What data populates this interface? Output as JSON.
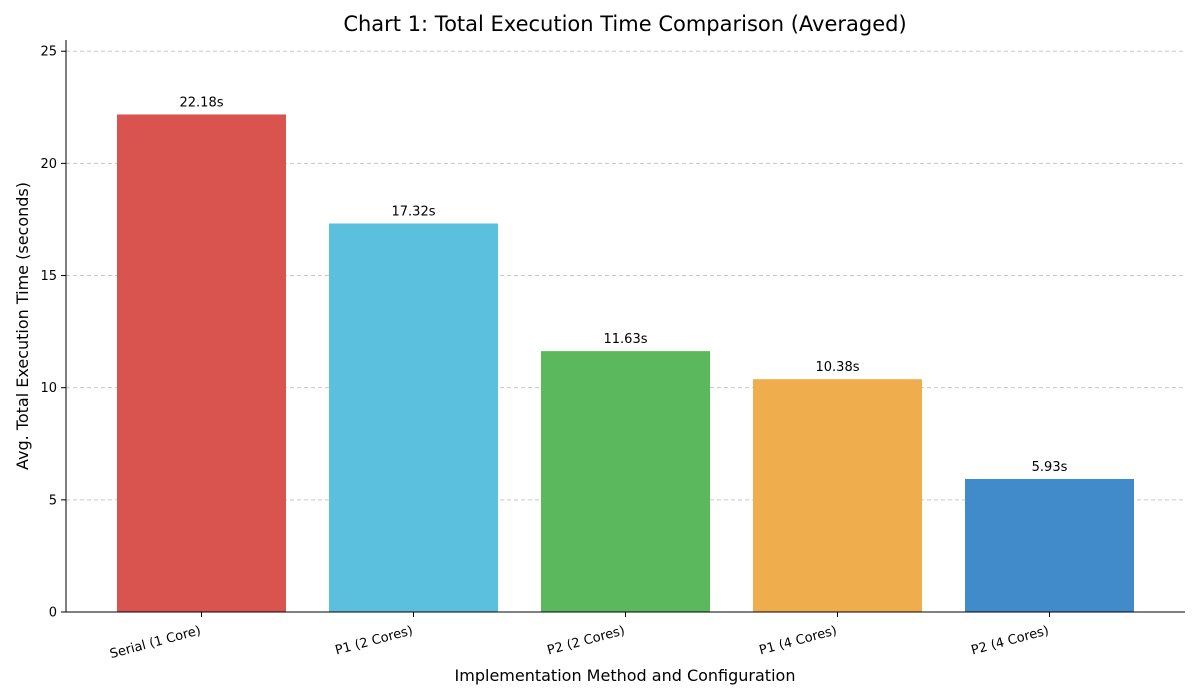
{
  "chart_data": {
    "type": "bar",
    "title": "Chart 1: Total Execution Time Comparison (Averaged)",
    "xlabel": "Implementation Method and Configuration",
    "ylabel": "Avg. Total Execution Time (seconds)",
    "categories": [
      "Serial (1 Core)",
      "P1 (2 Cores)",
      "P2 (2 Cores)",
      "P1 (4 Cores)",
      "P2 (4 Cores)"
    ],
    "values": [
      22.18,
      17.32,
      11.63,
      10.38,
      5.93
    ],
    "data_labels": [
      "22.18s",
      "17.32s",
      "11.63s",
      "10.38s",
      "5.93s"
    ],
    "colors": [
      "#d9534f",
      "#5bc0de",
      "#5cb85c",
      "#f0ad4e",
      "#428bca"
    ],
    "ylim": [
      0,
      25.5
    ],
    "yticks": [
      0,
      5,
      10,
      15,
      20,
      25
    ],
    "grid": "y-dashed",
    "legend": "none"
  }
}
